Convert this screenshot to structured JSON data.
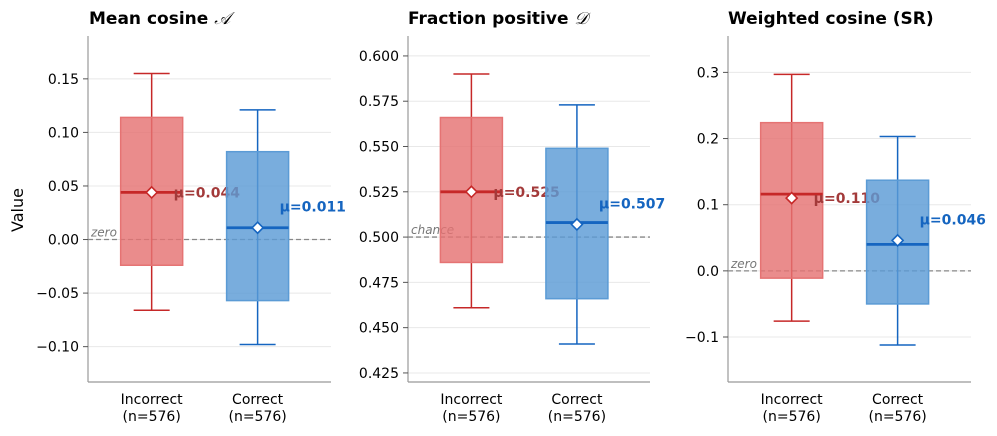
{
  "y_axis_label": "Value",
  "chart_data": [
    {
      "type": "box",
      "title": "Mean cosine ",
      "title_symbol": "𝒜",
      "categories": [
        "Incorrect\n(n=576)",
        "Correct\n(n=576)"
      ],
      "series": [
        {
          "category": "Incorrect\n(n=576)",
          "whisker_low": -0.066,
          "q1": -0.024,
          "median": 0.044,
          "q3": 0.114,
          "whisker_high": 0.155,
          "mean": 0.044,
          "mean_label": "μ=0.044",
          "color": "#c62828"
        },
        {
          "category": "Correct\n(n=576)",
          "whisker_low": -0.098,
          "q1": -0.057,
          "median": 0.011,
          "q3": 0.082,
          "whisker_high": 0.121,
          "mean": 0.011,
          "mean_label": "μ=0.011",
          "color": "#1565c0"
        }
      ],
      "yticks": [
        -0.1,
        -0.05,
        0.0,
        0.05,
        0.1,
        0.15
      ],
      "ytick_labels": [
        "−0.10",
        "−0.05",
        "0.00",
        "0.05",
        "0.10",
        "0.15"
      ],
      "ylim": [
        -0.133,
        0.19
      ],
      "reference_line": {
        "value": 0.0,
        "label": "zero"
      },
      "grid": true
    },
    {
      "type": "box",
      "title": "Fraction positive ",
      "title_symbol": "𝒟",
      "categories": [
        "Incorrect\n(n=576)",
        "Correct\n(n=576)"
      ],
      "series": [
        {
          "category": "Incorrect\n(n=576)",
          "whisker_low": 0.461,
          "q1": 0.486,
          "median": 0.525,
          "q3": 0.566,
          "whisker_high": 0.59,
          "mean": 0.525,
          "mean_label": "μ=0.525",
          "color": "#c62828"
        },
        {
          "category": "Correct\n(n=576)",
          "whisker_low": 0.441,
          "q1": 0.466,
          "median": 0.508,
          "q3": 0.549,
          "whisker_high": 0.573,
          "mean": 0.507,
          "mean_label": "μ=0.507",
          "color": "#1565c0"
        }
      ],
      "yticks": [
        0.425,
        0.45,
        0.475,
        0.5,
        0.525,
        0.55,
        0.575,
        0.6
      ],
      "ytick_labels": [
        "0.425",
        "0.450",
        "0.475",
        "0.500",
        "0.525",
        "0.550",
        "0.575",
        "0.600"
      ],
      "ylim": [
        0.42,
        0.611
      ],
      "reference_line": {
        "value": 0.5,
        "label": "chance"
      },
      "grid": true
    },
    {
      "type": "box",
      "title": "Weighted cosine (SR)",
      "title_symbol": "",
      "categories": [
        "Incorrect\n(n=576)",
        "Correct\n(n=576)"
      ],
      "series": [
        {
          "category": "Incorrect\n(n=576)",
          "whisker_low": -0.076,
          "q1": -0.011,
          "median": 0.116,
          "q3": 0.224,
          "whisker_high": 0.297,
          "mean": 0.11,
          "mean_label": "μ=0.110",
          "color": "#c62828"
        },
        {
          "category": "Correct\n(n=576)",
          "whisker_low": -0.112,
          "q1": -0.05,
          "median": 0.04,
          "q3": 0.137,
          "whisker_high": 0.203,
          "mean": 0.046,
          "mean_label": "μ=0.046",
          "color": "#1565c0"
        }
      ],
      "yticks": [
        -0.1,
        0.0,
        0.1,
        0.2,
        0.3
      ],
      "ytick_labels": [
        "−0.1",
        "0.0",
        "0.1",
        "0.2",
        "0.3"
      ],
      "ylim": [
        -0.168,
        0.355
      ],
      "reference_line": {
        "value": 0.0,
        "label": "zero"
      },
      "grid": true
    }
  ],
  "colors": {
    "incorrect_fill": "#e57373",
    "incorrect_line": "#c62828",
    "correct_fill": "#5b9bd5",
    "correct_line": "#1565c0",
    "reference_line": "#888888",
    "grid": "#e8e8e8",
    "axis": "#999999"
  }
}
